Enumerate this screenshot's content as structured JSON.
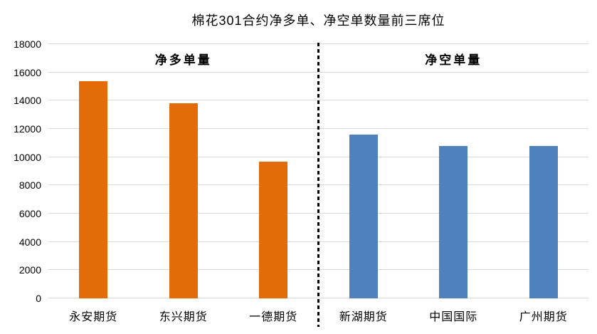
{
  "title": "棉花301合约净多单、净空单数量前三席位",
  "colors": {
    "background": "#FFFFFF",
    "gridline": "#D9D9D9",
    "long_bar_orange": "#E36C09",
    "short_bar_blue": "#4F81BD",
    "divider": "#000000",
    "text": "#000000"
  },
  "chart_data": {
    "type": "bar",
    "title": "棉花301合约净多单、净空单数量前三席位",
    "xlabel": "",
    "ylabel": "",
    "ylim": [
      0,
      18000
    ],
    "yticks": [
      0,
      2000,
      4000,
      6000,
      8000,
      10000,
      12000,
      14000,
      16000,
      18000
    ],
    "grid": true,
    "legend_position": "none",
    "separator": {
      "style": "dashed-vertical-line",
      "color": "#000000",
      "position": "between-groups"
    },
    "groups": [
      {
        "label": "净多单量",
        "bar_color": "#E36C09",
        "categories": [
          "永安期货",
          "东兴期货",
          "一德期货"
        ],
        "values": [
          15400,
          13800,
          9700
        ]
      },
      {
        "label": "净空单量",
        "bar_color": "#4F81BD",
        "categories": [
          "新湖期货",
          "中国国际",
          "广州期货"
        ],
        "values": [
          11600,
          10800,
          10800
        ]
      }
    ]
  }
}
